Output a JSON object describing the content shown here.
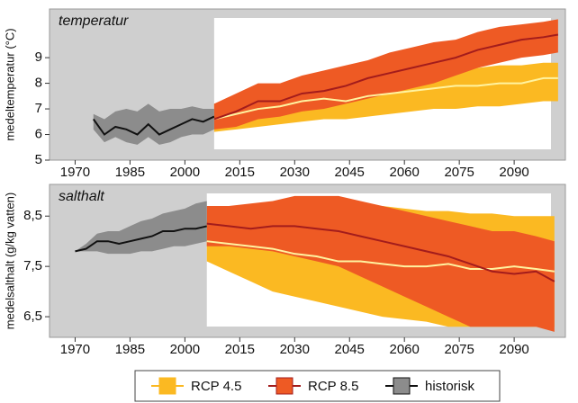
{
  "chart_data": [
    {
      "type": "line",
      "title": "temperatur",
      "y_label": "medeltemperatur (°C)",
      "xlim": [
        1963,
        2104
      ],
      "xticks": [
        1970,
        1985,
        2000,
        2015,
        2030,
        2045,
        2060,
        2075,
        2090
      ],
      "ylim": [
        5,
        10.9
      ],
      "yticks": [
        5,
        6,
        7,
        8,
        9
      ],
      "series": [
        {
          "name": "RCP 4.5",
          "color": "#fff3a0",
          "band_color": "#fbb922",
          "x": [
            2008,
            2014,
            2020,
            2026,
            2032,
            2038,
            2044,
            2050,
            2056,
            2062,
            2068,
            2074,
            2080,
            2086,
            2092,
            2098,
            2102
          ],
          "values": [
            6.6,
            6.8,
            7.0,
            7.1,
            7.3,
            7.4,
            7.3,
            7.5,
            7.6,
            7.7,
            7.8,
            7.9,
            7.9,
            8.0,
            8.0,
            8.2,
            8.2
          ],
          "low": [
            6.1,
            6.2,
            6.3,
            6.4,
            6.5,
            6.6,
            6.6,
            6.7,
            6.8,
            6.9,
            7.0,
            7.0,
            7.1,
            7.1,
            7.2,
            7.3,
            7.3
          ],
          "high": [
            7.2,
            7.4,
            7.6,
            7.8,
            8.0,
            8.1,
            8.1,
            8.2,
            8.3,
            8.4,
            8.5,
            8.6,
            8.6,
            8.7,
            8.7,
            8.8,
            8.8
          ]
        },
        {
          "name": "RCP 8.5",
          "color": "#a31c1c",
          "band_color": "#ee5a24",
          "x": [
            2008,
            2014,
            2020,
            2026,
            2032,
            2038,
            2044,
            2050,
            2056,
            2062,
            2068,
            2074,
            2080,
            2086,
            2092,
            2098,
            2102
          ],
          "values": [
            6.6,
            6.9,
            7.3,
            7.3,
            7.6,
            7.7,
            7.9,
            8.2,
            8.4,
            8.6,
            8.8,
            9.0,
            9.3,
            9.5,
            9.7,
            9.8,
            9.9
          ],
          "low": [
            6.2,
            6.3,
            6.6,
            6.7,
            6.9,
            7.0,
            7.2,
            7.4,
            7.6,
            7.8,
            8.0,
            8.3,
            8.6,
            8.8,
            9.0,
            9.1,
            9.2
          ],
          "high": [
            7.2,
            7.6,
            8.0,
            8.0,
            8.3,
            8.5,
            8.7,
            8.9,
            9.2,
            9.4,
            9.6,
            9.7,
            10.0,
            10.2,
            10.3,
            10.4,
            10.5
          ]
        },
        {
          "name": "historisk",
          "color": "#111111",
          "band_color": "#8c8c8c",
          "x": [
            1975,
            1978,
            1981,
            1984,
            1987,
            1990,
            1993,
            1996,
            1999,
            2002,
            2005,
            2008
          ],
          "values": [
            6.6,
            6.0,
            6.3,
            6.2,
            6.0,
            6.4,
            6.0,
            6.2,
            6.4,
            6.6,
            6.5,
            6.7
          ],
          "low": [
            6.2,
            5.7,
            5.9,
            5.7,
            5.6,
            5.9,
            5.6,
            5.7,
            5.9,
            6.0,
            6.0,
            6.2
          ],
          "high": [
            6.8,
            6.6,
            6.9,
            7.0,
            6.9,
            7.2,
            6.9,
            7.0,
            7.0,
            7.1,
            7.0,
            7.0
          ]
        }
      ]
    },
    {
      "type": "line",
      "title": "salthalt",
      "y_label": "medelsalthalt (g/kg vatten)",
      "xlim": [
        1963,
        2104
      ],
      "xticks": [
        1970,
        1985,
        2000,
        2015,
        2030,
        2045,
        2060,
        2075,
        2090
      ],
      "ylim": [
        6.09,
        9.13
      ],
      "yticks": [
        {
          "value": 6.5,
          "label": "6,5"
        },
        {
          "value": 7.5,
          "label": "7,5"
        },
        {
          "value": 8.5,
          "label": "8,5"
        }
      ],
      "series": [
        {
          "color": "#fff3a0",
          "band_color": "#fbb922",
          "x": [
            2006,
            2012,
            2018,
            2024,
            2030,
            2036,
            2042,
            2048,
            2054,
            2060,
            2066,
            2072,
            2078,
            2084,
            2090,
            2096,
            2101
          ],
          "values": [
            8.0,
            7.95,
            7.9,
            7.85,
            7.75,
            7.7,
            7.6,
            7.6,
            7.55,
            7.5,
            7.5,
            7.55,
            7.45,
            7.45,
            7.5,
            7.45,
            7.4
          ],
          "low": [
            7.6,
            7.4,
            7.2,
            7.0,
            6.9,
            6.8,
            6.7,
            6.6,
            6.5,
            6.45,
            6.4,
            6.3,
            6.3,
            6.3,
            6.3,
            6.3,
            6.3
          ],
          "high": [
            8.4,
            8.5,
            8.6,
            8.7,
            8.75,
            8.8,
            8.75,
            8.7,
            8.7,
            8.65,
            8.6,
            8.6,
            8.55,
            8.55,
            8.5,
            8.5,
            8.5
          ]
        },
        {
          "color": "#a31c1c",
          "band_color": "#ee5a24",
          "x": [
            2006,
            2012,
            2018,
            2024,
            2030,
            2036,
            2042,
            2048,
            2054,
            2060,
            2066,
            2072,
            2078,
            2084,
            2090,
            2096,
            2101
          ],
          "values": [
            8.35,
            8.3,
            8.25,
            8.3,
            8.3,
            8.25,
            8.2,
            8.1,
            8.0,
            7.9,
            7.8,
            7.7,
            7.55,
            7.4,
            7.35,
            7.4,
            7.2
          ],
          "low": [
            7.9,
            7.9,
            7.85,
            7.8,
            7.7,
            7.6,
            7.5,
            7.3,
            7.1,
            6.9,
            6.7,
            6.5,
            6.3,
            6.3,
            6.3,
            6.3,
            6.2
          ],
          "high": [
            8.7,
            8.7,
            8.75,
            8.8,
            8.9,
            8.9,
            8.9,
            8.8,
            8.7,
            8.6,
            8.5,
            8.4,
            8.3,
            8.2,
            8.2,
            8.1,
            8.0
          ]
        },
        {
          "color": "#111111",
          "band_color": "#8c8c8c",
          "x": [
            1970,
            1973,
            1976,
            1979,
            1982,
            1985,
            1988,
            1991,
            1994,
            1997,
            2000,
            2003,
            2006
          ],
          "values": [
            7.8,
            7.85,
            8.0,
            8.0,
            7.95,
            8.0,
            8.05,
            8.1,
            8.2,
            8.2,
            8.25,
            8.25,
            8.3
          ],
          "low": [
            7.8,
            7.8,
            7.8,
            7.75,
            7.75,
            7.75,
            7.8,
            7.8,
            7.85,
            7.9,
            7.9,
            7.95,
            8.0
          ],
          "high": [
            7.8,
            7.95,
            8.15,
            8.2,
            8.2,
            8.3,
            8.4,
            8.45,
            8.55,
            8.6,
            8.65,
            8.75,
            8.8
          ]
        }
      ]
    }
  ]
}
